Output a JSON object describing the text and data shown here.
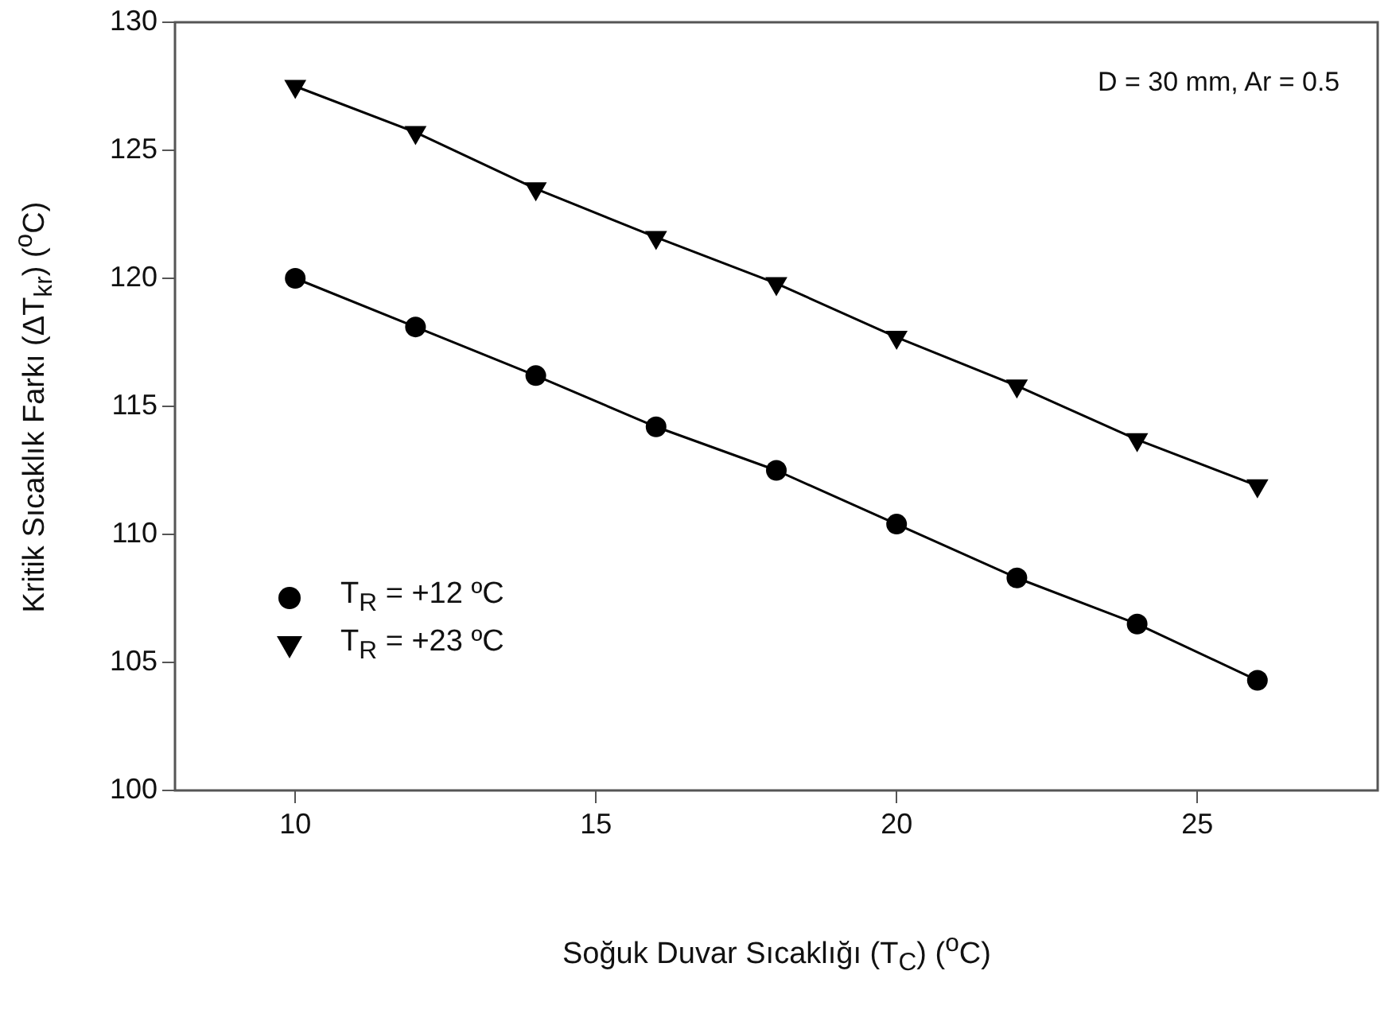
{
  "chart_data": {
    "type": "line",
    "xlabel": "Soğuk Duvar Sıcaklığı (T$_{C}$) ($^{o}$C)",
    "ylabel": "Kritik Sıcaklık Farkı (ΔT$_{kr}$) ($^{o}$C)",
    "annotations": [
      "D = 30 mm, Ar = 0.5"
    ],
    "x": [
      10,
      12,
      14,
      16,
      18,
      20,
      22,
      24,
      26
    ],
    "series": [
      {
        "name": "T$_{R}$ = +12 ºC",
        "color": "#000000",
        "marker": "circle",
        "values": [
          120.0,
          118.1,
          116.2,
          114.2,
          112.5,
          110.4,
          108.3,
          106.5,
          104.3
        ]
      },
      {
        "name": "T$_{R}$ = +23 ºC",
        "color": "#000000",
        "marker": "triangle",
        "values": [
          127.5,
          125.7,
          123.5,
          121.6,
          119.8,
          117.7,
          115.8,
          113.7,
          111.9
        ]
      }
    ],
    "xlim": [
      8,
      28
    ],
    "xticks": [
      10,
      15,
      20,
      25
    ],
    "ylim": [
      100,
      130
    ],
    "yticks": [
      100,
      105,
      110,
      115,
      120,
      125,
      130
    ],
    "grid": false,
    "legend": "left"
  }
}
